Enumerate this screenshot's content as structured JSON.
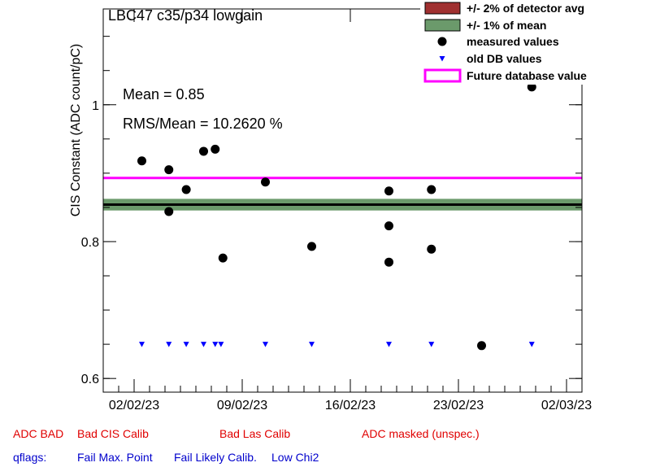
{
  "chart_data": {
    "type": "scatter",
    "title": "LBC47 c35/p34 lowgain",
    "ylabel": "CIS Constant (ADC count/pC)",
    "xlabel": "",
    "ylim": [
      0.58,
      1.14
    ],
    "yticks": [
      "0.6",
      "0.8",
      "1"
    ],
    "xlim": [
      "2023-01-31",
      "2023-03-03"
    ],
    "xticks": [
      {
        "date": "2023-02-02",
        "label": "02/02/23"
      },
      {
        "date": "2023-02-09",
        "label": "09/02/23"
      },
      {
        "date": "2023-02-16",
        "label": "16/02/23"
      },
      {
        "date": "2023-02-23",
        "label": "23/02/23"
      },
      {
        "date": "2023-03-02",
        "label": "02/03/23"
      }
    ],
    "stats": {
      "mean_text": "Mean = 0.85",
      "rms_text": "RMS/Mean = 10.2620 %"
    },
    "mean": 0.854,
    "band_1pct": [
      0.8455,
      0.8625
    ],
    "future_db_value": 0.893,
    "legend": [
      {
        "label": "+/- 2% of detector avg",
        "color": "#a03030"
      },
      {
        "label": "+/- 1% of mean",
        "color": "#6b9a6b"
      },
      {
        "label": "measured values",
        "color": "#000000"
      },
      {
        "label": "old DB values",
        "color": "#0000ff"
      },
      {
        "label": "Future database value",
        "color": "#ff00ff"
      }
    ],
    "series": [
      {
        "name": "measured values",
        "points": [
          {
            "x": "2023-02-02 12:00",
            "y": 0.918
          },
          {
            "x": "2023-02-04 06:00",
            "y": 0.905
          },
          {
            "x": "2023-02-04 06:00",
            "y": 0.844
          },
          {
            "x": "2023-02-05 09:00",
            "y": 0.876
          },
          {
            "x": "2023-02-06 12:00",
            "y": 0.932
          },
          {
            "x": "2023-02-07 06:00",
            "y": 0.935
          },
          {
            "x": "2023-02-07 18:00",
            "y": 0.776
          },
          {
            "x": "2023-02-10 12:00",
            "y": 0.887
          },
          {
            "x": "2023-02-13 12:00",
            "y": 0.793
          },
          {
            "x": "2023-02-18 12:00",
            "y": 0.874
          },
          {
            "x": "2023-02-18 12:00",
            "y": 0.823
          },
          {
            "x": "2023-02-18 12:00",
            "y": 0.77
          },
          {
            "x": "2023-02-21 06:00",
            "y": 0.876
          },
          {
            "x": "2023-02-21 06:00",
            "y": 0.789
          },
          {
            "x": "2023-02-24 12:00",
            "y": 0.648
          },
          {
            "x": "2023-02-27 18:00",
            "y": 1.026
          }
        ]
      },
      {
        "name": "old DB values",
        "points": [
          {
            "x": "2023-02-02 12:00",
            "y": 0.65
          },
          {
            "x": "2023-02-04 06:00",
            "y": 0.65
          },
          {
            "x": "2023-02-05 09:00",
            "y": 0.65
          },
          {
            "x": "2023-02-06 12:00",
            "y": 0.65
          },
          {
            "x": "2023-02-07 06:00",
            "y": 0.65
          },
          {
            "x": "2023-02-07 15:00",
            "y": 0.65
          },
          {
            "x": "2023-02-10 12:00",
            "y": 0.65
          },
          {
            "x": "2023-02-13 12:00",
            "y": 0.65
          },
          {
            "x": "2023-02-18 12:00",
            "y": 0.65
          },
          {
            "x": "2023-02-21 06:00",
            "y": 0.65
          },
          {
            "x": "2023-02-24 12:00",
            "y": 0.65
          },
          {
            "x": "2023-02-27 18:00",
            "y": 0.65
          }
        ]
      }
    ]
  },
  "flags": {
    "adc_bad": "ADC BAD",
    "bad_cis_calib": "Bad CIS Calib",
    "bad_las_calib": "Bad Las Calib",
    "adc_masked": "ADC masked (unspec.)",
    "qflags": "qflags:",
    "fail_max_point": "Fail Max. Point",
    "fail_likely_calib": "Fail Likely Calib.",
    "low_chi2": "Low Chi2"
  }
}
